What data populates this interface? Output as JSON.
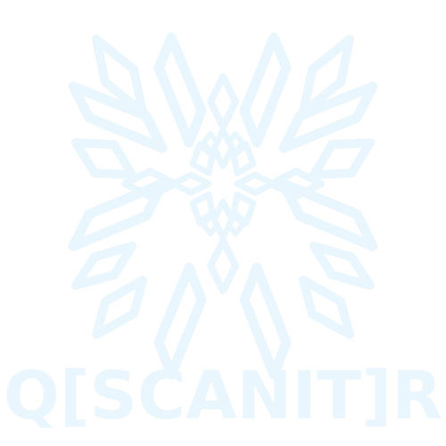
{
  "brand": {
    "name": "Q[SCANIT]R",
    "icon": "snowflake-mandala-icon",
    "colors": {
      "mark": "#eaf6fd",
      "background": "#ffffff"
    }
  }
}
